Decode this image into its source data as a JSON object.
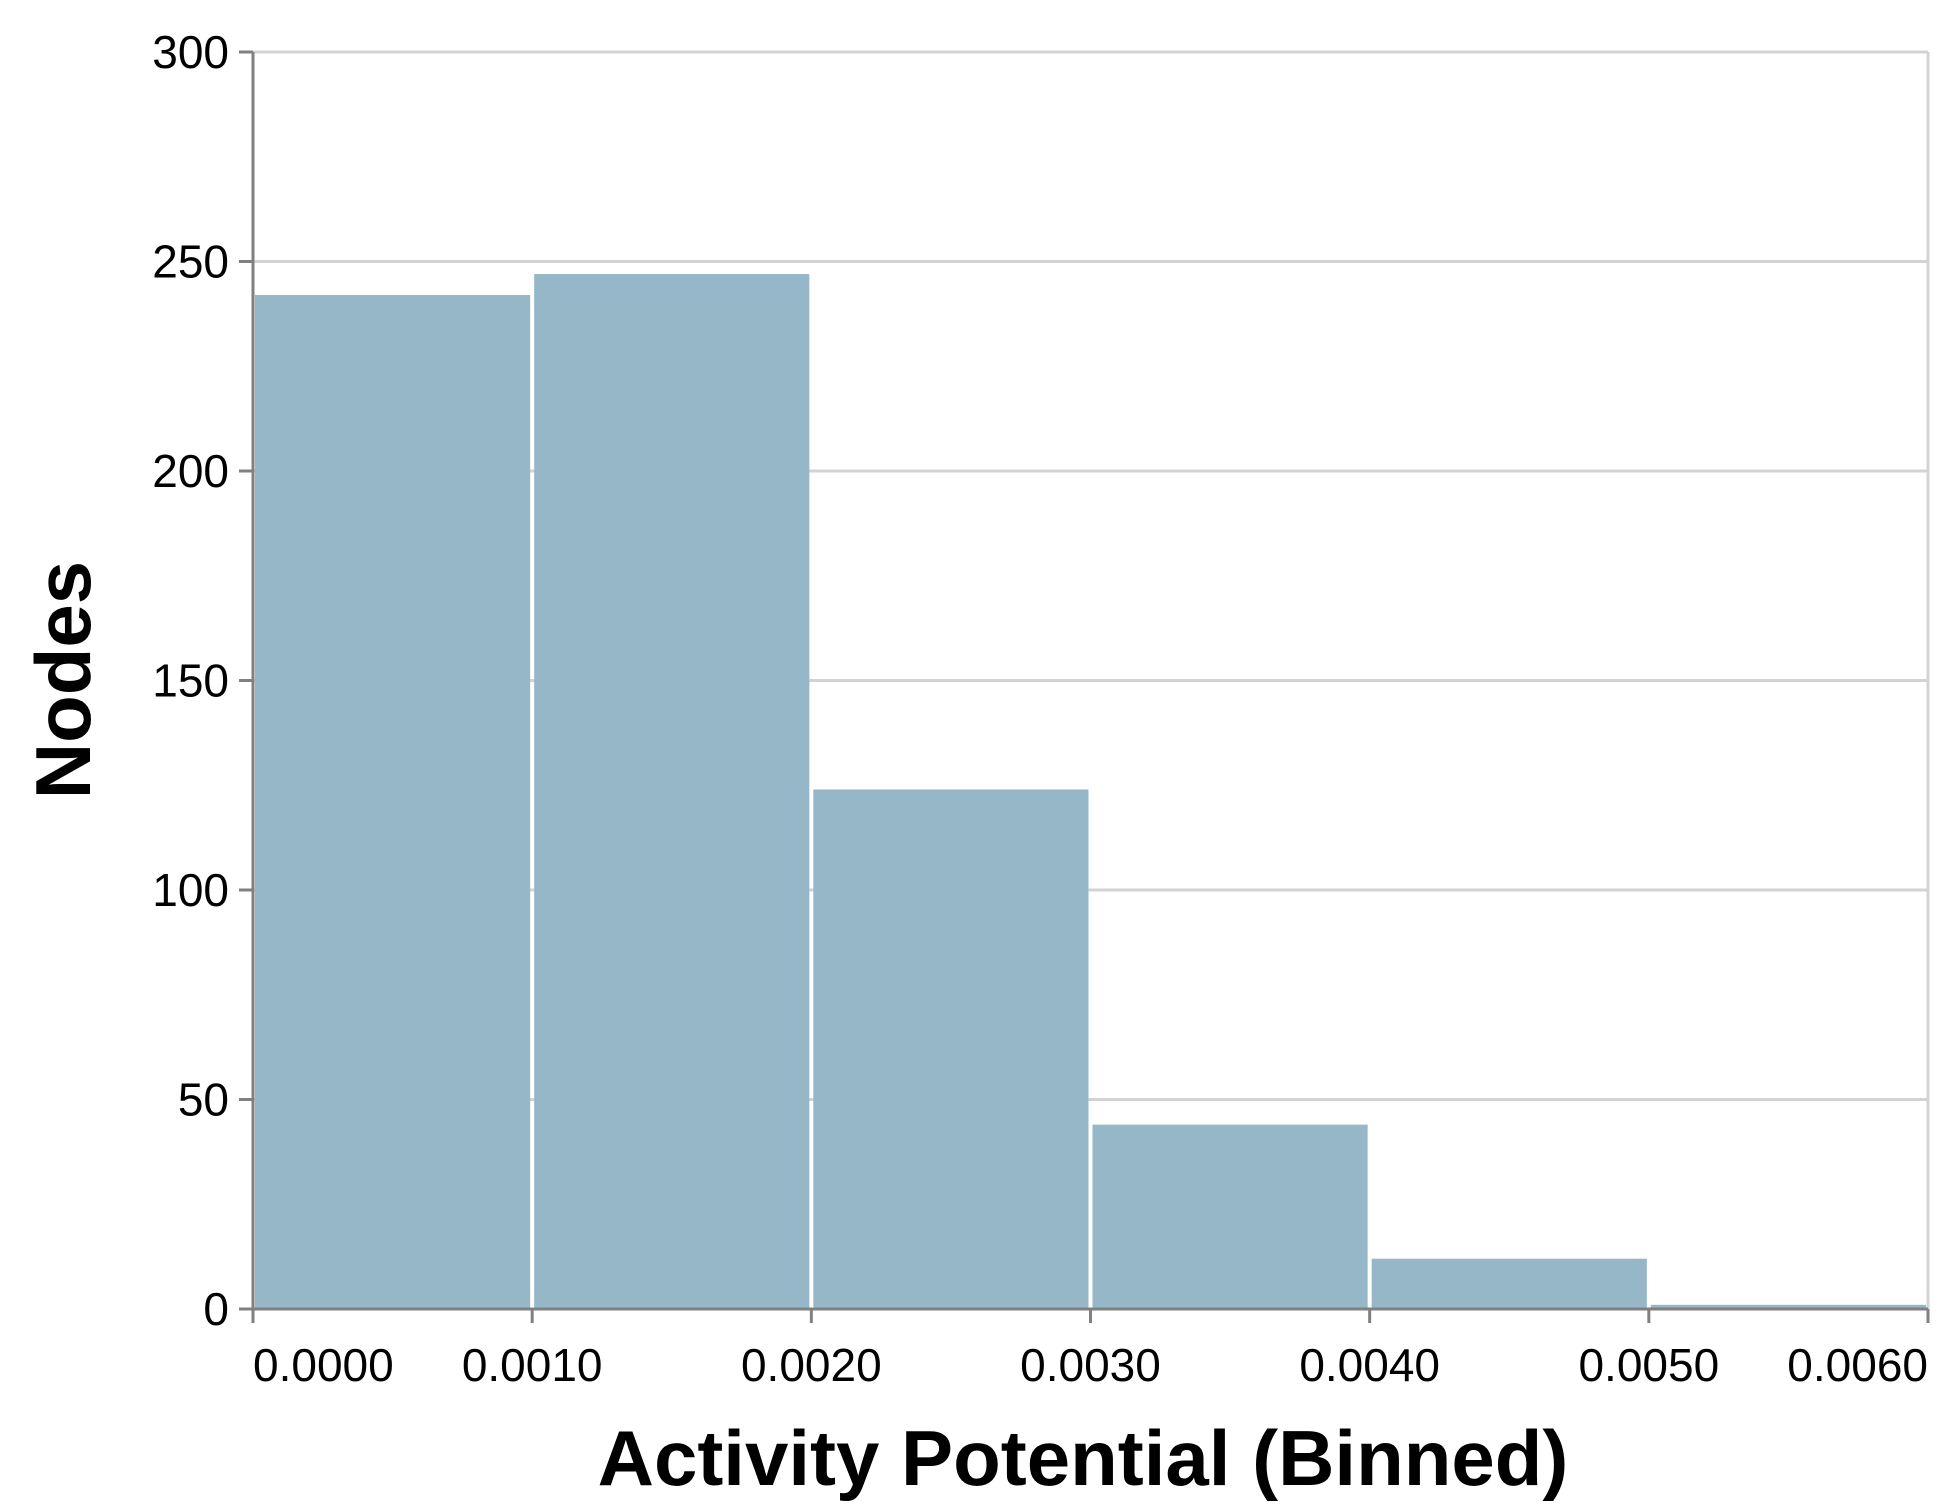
{
  "chart_data": {
    "type": "bar",
    "title": "",
    "xlabel": "Activity Potential (Binned)",
    "ylabel": "Nodes",
    "xlim": [
      0.0,
      0.006
    ],
    "ylim": [
      0,
      300
    ],
    "grid": true,
    "bin_width": 0.001,
    "x_ticks": [
      "0.0000",
      "0.0010",
      "0.0020",
      "0.0030",
      "0.0040",
      "0.0050",
      "0.0060"
    ],
    "x_tick_values": [
      0.0,
      0.001,
      0.002,
      0.003,
      0.004,
      0.005,
      0.006
    ],
    "y_ticks": [
      "0",
      "50",
      "100",
      "150",
      "200",
      "250",
      "300"
    ],
    "y_tick_values": [
      0,
      50,
      100,
      150,
      200,
      250,
      300
    ],
    "bins": [
      {
        "x0": 0.0,
        "x1": 0.001,
        "value": 242
      },
      {
        "x0": 0.001,
        "x1": 0.002,
        "value": 247
      },
      {
        "x0": 0.002,
        "x1": 0.003,
        "value": 124
      },
      {
        "x0": 0.003,
        "x1": 0.004,
        "value": 44
      },
      {
        "x0": 0.004,
        "x1": 0.005,
        "value": 12
      },
      {
        "x0": 0.005,
        "x1": 0.006,
        "value": 1
      }
    ],
    "colors": {
      "bar": "#96b7c7",
      "grid": "#d3d3d3",
      "axis": "#808080"
    }
  }
}
